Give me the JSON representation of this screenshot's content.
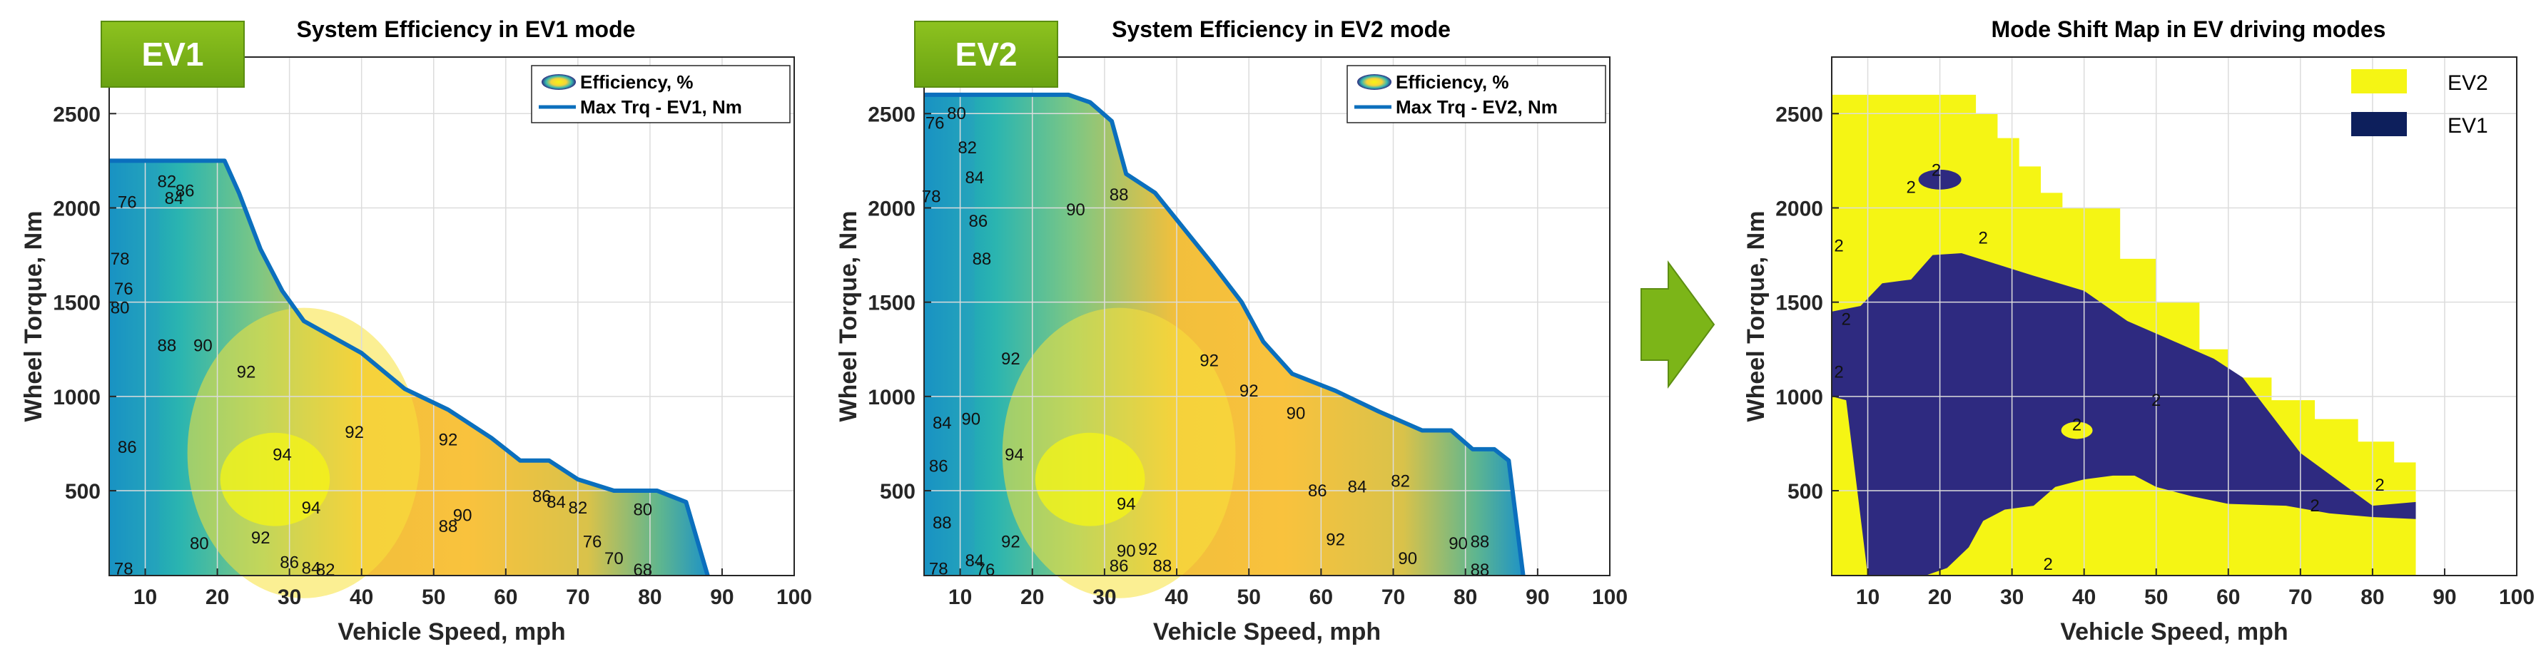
{
  "panels": [
    {
      "badge": "EV1",
      "title": "System Efficiency in EV1 mode",
      "xlabel": "Vehicle Speed, mph",
      "ylabel": "Wheel Torque, Nm",
      "xticks": [
        10,
        20,
        30,
        40,
        50,
        60,
        70,
        80,
        90,
        100
      ],
      "yticks": [
        500,
        1000,
        1500,
        2000,
        2500
      ],
      "legend": [
        "Efficiency, %",
        "Max Trq - EV1, Nm"
      ]
    },
    {
      "badge": "EV2",
      "title": "System Efficiency in EV2 mode",
      "xlabel": "Vehicle Speed, mph",
      "ylabel": "Wheel Torque, Nm",
      "xticks": [
        10,
        20,
        30,
        40,
        50,
        60,
        70,
        80,
        90,
        100
      ],
      "yticks": [
        500,
        1000,
        1500,
        2000,
        2500
      ],
      "legend": [
        "Efficiency, %",
        "Max Trq - EV2, Nm"
      ]
    },
    {
      "title": "Mode Shift Map in EV driving modes",
      "xlabel": "Vehicle Speed, mph",
      "ylabel": "Wheel Torque, Nm",
      "xticks": [
        10,
        20,
        30,
        40,
        50,
        60,
        70,
        80,
        90,
        100
      ],
      "yticks": [
        500,
        1000,
        1500,
        2000,
        2500
      ],
      "legend": [
        "EV2",
        "EV1"
      ]
    }
  ],
  "chart_data": [
    {
      "type": "contour",
      "title": "System Efficiency in EV1 mode",
      "xlabel": "Vehicle Speed, mph",
      "ylabel": "Wheel Torque, Nm",
      "xlim": [
        5,
        100
      ],
      "ylim": [
        50,
        2800
      ],
      "max_torque_curve": {
        "name": "Max Trq - EV1, Nm",
        "x": [
          5,
          21,
          23,
          26,
          29,
          32,
          40,
          46,
          52,
          58,
          62,
          66,
          70,
          75,
          81,
          85,
          88
        ],
        "y": [
          2250,
          2250,
          2080,
          1780,
          1560,
          1400,
          1230,
          1040,
          930,
          780,
          660,
          660,
          560,
          500,
          500,
          440,
          0
        ]
      },
      "contour_labels": [
        {
          "x": 7.5,
          "y": 2000,
          "text": "76"
        },
        {
          "x": 13,
          "y": 2110,
          "text": "82"
        },
        {
          "x": 14,
          "y": 2020,
          "text": "84"
        },
        {
          "x": 15.5,
          "y": 2060,
          "text": "86"
        },
        {
          "x": 6.5,
          "y": 1700,
          "text": "78"
        },
        {
          "x": 7,
          "y": 1540,
          "text": "76"
        },
        {
          "x": 6.5,
          "y": 1440,
          "text": "80"
        },
        {
          "x": 13,
          "y": 1240,
          "text": "88"
        },
        {
          "x": 18,
          "y": 1240,
          "text": "90"
        },
        {
          "x": 24,
          "y": 1100,
          "text": "92"
        },
        {
          "x": 7.5,
          "y": 700,
          "text": "86"
        },
        {
          "x": 29,
          "y": 660,
          "text": "94"
        },
        {
          "x": 39,
          "y": 780,
          "text": "92"
        },
        {
          "x": 52,
          "y": 740,
          "text": "92"
        },
        {
          "x": 33,
          "y": 380,
          "text": "94"
        },
        {
          "x": 26,
          "y": 220,
          "text": "92"
        },
        {
          "x": 54,
          "y": 340,
          "text": "90"
        },
        {
          "x": 52,
          "y": 280,
          "text": "88"
        },
        {
          "x": 65,
          "y": 440,
          "text": "86"
        },
        {
          "x": 67,
          "y": 410,
          "text": "84"
        },
        {
          "x": 70,
          "y": 380,
          "text": "82"
        },
        {
          "x": 79,
          "y": 370,
          "text": "80"
        },
        {
          "x": 7,
          "y": 55,
          "text": "78"
        },
        {
          "x": 17.5,
          "y": 190,
          "text": "80"
        },
        {
          "x": 30,
          "y": 90,
          "text": "86"
        },
        {
          "x": 33,
          "y": 60,
          "text": "84"
        },
        {
          "x": 35,
          "y": 50,
          "text": "82"
        },
        {
          "x": 72,
          "y": 200,
          "text": "76"
        },
        {
          "x": 75,
          "y": 110,
          "text": "70"
        },
        {
          "x": 79,
          "y": 50,
          "text": "68"
        }
      ]
    },
    {
      "type": "contour",
      "title": "System Efficiency in EV2 mode",
      "xlabel": "Vehicle Speed, mph",
      "ylabel": "Wheel Torque, Nm",
      "xlim": [
        5,
        100
      ],
      "ylim": [
        50,
        2800
      ],
      "max_torque_curve": {
        "name": "Max Trq - EV2, Nm",
        "x": [
          5,
          22,
          25,
          28,
          31,
          33,
          37,
          41,
          45,
          49,
          52,
          56,
          62,
          68,
          74,
          78,
          81,
          84,
          86,
          88
        ],
        "y": [
          2600,
          2600,
          2600,
          2560,
          2460,
          2180,
          2080,
          1890,
          1700,
          1500,
          1290,
          1120,
          1030,
          920,
          820,
          820,
          720,
          720,
          660,
          0
        ]
      },
      "contour_labels": [
        {
          "x": 6.5,
          "y": 2420,
          "text": "76"
        },
        {
          "x": 9.5,
          "y": 2470,
          "text": "80"
        },
        {
          "x": 11,
          "y": 2290,
          "text": "82"
        },
        {
          "x": 12,
          "y": 2130,
          "text": "84"
        },
        {
          "x": 12.5,
          "y": 1900,
          "text": "86"
        },
        {
          "x": 13,
          "y": 1700,
          "text": "88"
        },
        {
          "x": 6,
          "y": 2030,
          "text": "78"
        },
        {
          "x": 26,
          "y": 1960,
          "text": "90"
        },
        {
          "x": 32,
          "y": 2040,
          "text": "88"
        },
        {
          "x": 7.5,
          "y": 830,
          "text": "84"
        },
        {
          "x": 7,
          "y": 600,
          "text": "86"
        },
        {
          "x": 7.5,
          "y": 300,
          "text": "88"
        },
        {
          "x": 11.5,
          "y": 850,
          "text": "90"
        },
        {
          "x": 17,
          "y": 1170,
          "text": "92"
        },
        {
          "x": 17.5,
          "y": 660,
          "text": "94"
        },
        {
          "x": 44.5,
          "y": 1160,
          "text": "92"
        },
        {
          "x": 50,
          "y": 1000,
          "text": "92"
        },
        {
          "x": 56.5,
          "y": 880,
          "text": "90"
        },
        {
          "x": 33,
          "y": 400,
          "text": "94"
        },
        {
          "x": 17,
          "y": 200,
          "text": "92"
        },
        {
          "x": 59.5,
          "y": 470,
          "text": "86"
        },
        {
          "x": 65,
          "y": 490,
          "text": "84"
        },
        {
          "x": 71,
          "y": 520,
          "text": "82"
        },
        {
          "x": 62,
          "y": 210,
          "text": "92"
        },
        {
          "x": 72,
          "y": 110,
          "text": "90"
        },
        {
          "x": 79,
          "y": 190,
          "text": "90"
        },
        {
          "x": 82,
          "y": 200,
          "text": "88"
        },
        {
          "x": 82,
          "y": 50,
          "text": "88"
        },
        {
          "x": 33,
          "y": 150,
          "text": "90"
        },
        {
          "x": 36,
          "y": 160,
          "text": "92"
        },
        {
          "x": 32,
          "y": 70,
          "text": "86"
        },
        {
          "x": 38,
          "y": 70,
          "text": "88"
        },
        {
          "x": 7,
          "y": 55,
          "text": "78"
        },
        {
          "x": 12,
          "y": 100,
          "text": "84"
        },
        {
          "x": 13.5,
          "y": 50,
          "text": "76"
        }
      ]
    },
    {
      "type": "region_map",
      "title": "Mode Shift Map in EV driving modes",
      "xlabel": "Vehicle Speed, mph",
      "ylabel": "Wheel Torque, Nm",
      "xlim": [
        5,
        100
      ],
      "ylim": [
        50,
        2800
      ],
      "series": [
        {
          "name": "EV2",
          "color": "#f5f514",
          "x": [
            5,
            25,
            25,
            28,
            28,
            31,
            31,
            34,
            34,
            37,
            37,
            45,
            45,
            50,
            50,
            56,
            56,
            60,
            60,
            66,
            66,
            72,
            72,
            78,
            78,
            83,
            83,
            86,
            86,
            5
          ],
          "y": [
            2600,
            2600,
            2500,
            2500,
            2370,
            2370,
            2220,
            2220,
            2080,
            2080,
            2000,
            2000,
            1730,
            1730,
            1500,
            1500,
            1250,
            1250,
            1100,
            1100,
            980,
            980,
            880,
            880,
            760,
            760,
            650,
            650,
            50,
            50
          ]
        },
        {
          "name": "EV1",
          "color": "#2e2a80",
          "x": [
            5,
            9,
            12,
            16,
            19,
            23,
            28,
            33,
            40,
            46,
            52,
            58,
            62,
            66,
            70,
            75,
            80,
            86,
            86,
            80,
            74,
            68,
            60,
            55,
            50,
            47,
            44,
            40,
            36,
            33,
            29,
            26,
            24,
            21,
            18,
            15,
            13,
            10,
            7,
            5
          ],
          "y": [
            1450,
            1480,
            1600,
            1620,
            1750,
            1760,
            1700,
            1640,
            1560,
            1400,
            1300,
            1200,
            1100,
            900,
            700,
            560,
            420,
            440,
            350,
            360,
            380,
            420,
            430,
            470,
            520,
            580,
            580,
            560,
            520,
            420,
            400,
            340,
            200,
            90,
            50,
            50,
            50,
            50,
            980,
            1000
          ]
        }
      ],
      "annotations": [
        {
          "x": 19.5,
          "y": 2170,
          "text": "2"
        },
        {
          "x": 16,
          "y": 2080,
          "text": "2"
        },
        {
          "x": 26,
          "y": 1810,
          "text": "2"
        },
        {
          "x": 6,
          "y": 1770,
          "text": "2"
        },
        {
          "x": 7,
          "y": 1380,
          "text": "2"
        },
        {
          "x": 6,
          "y": 1100,
          "text": "2"
        },
        {
          "x": 50,
          "y": 950,
          "text": "2"
        },
        {
          "x": 39,
          "y": 820,
          "text": "2"
        },
        {
          "x": 72,
          "y": 390,
          "text": "2"
        },
        {
          "x": 81,
          "y": 500,
          "text": "2"
        },
        {
          "x": 35,
          "y": 80,
          "text": "2"
        }
      ]
    }
  ]
}
